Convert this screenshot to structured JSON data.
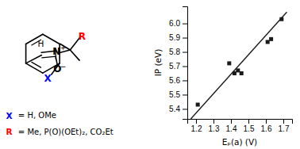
{
  "chart_data": {
    "type": "scatter",
    "x_label": "Eₚ(a) (V)",
    "y_label": "IP (eV)",
    "series": [
      {
        "type": "scatter",
        "marker": "square",
        "color": "#1a1a1a",
        "x": [
          1.21,
          1.39,
          1.42,
          1.44,
          1.46,
          1.61,
          1.63,
          1.69
        ],
        "values": [
          5.43,
          5.72,
          5.65,
          5.67,
          5.65,
          5.87,
          5.89,
          6.03
        ]
      },
      {
        "type": "line",
        "color": "#1a1a1a",
        "x": [
          1.17,
          1.72
        ],
        "values": [
          5.33,
          6.08
        ]
      }
    ],
    "xlim": [
      1.15,
      1.75
    ],
    "ylim": [
      5.33,
      6.12
    ],
    "xticks": [
      1.2,
      1.3,
      1.4,
      1.5,
      1.6,
      1.7
    ],
    "yticks": [
      5.4,
      5.5,
      5.6,
      5.7,
      5.8,
      5.9,
      {
        "value": 6.0,
        "label": "6.0"
      }
    ],
    "annotations": [
      {
        "text": "X",
        "color": "#0000ff"
      },
      {
        "text": "H"
      },
      {
        "text": "N"
      },
      {
        "text": "+"
      },
      {
        "text": "O"
      },
      {
        "text": "−"
      },
      {
        "text": "R",
        "color": "#ff0000"
      },
      {
        "text": "X",
        "color": "#0000ff"
      },
      {
        "text": "= H, OMe"
      },
      {
        "text": "R",
        "color": "#ff0000"
      },
      {
        "text": "= Me, P(O)(OEt)₂, CO₂Et"
      }
    ]
  }
}
